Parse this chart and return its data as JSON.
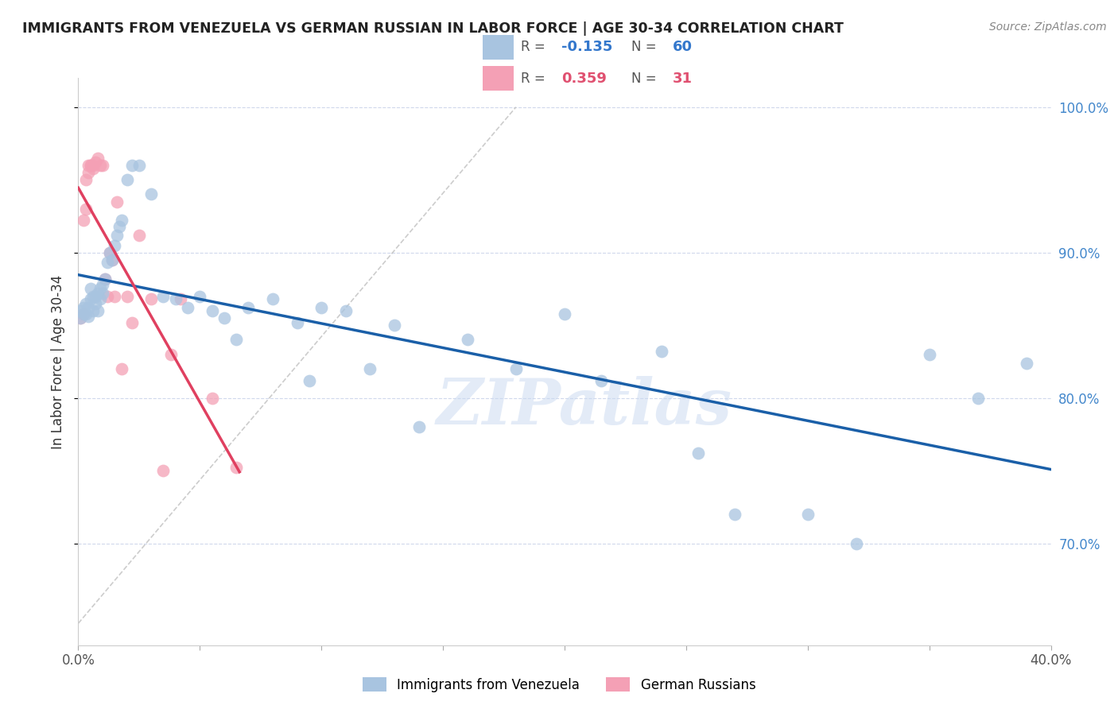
{
  "title": "IMMIGRANTS FROM VENEZUELA VS GERMAN RUSSIAN IN LABOR FORCE | AGE 30-34 CORRELATION CHART",
  "source": "Source: ZipAtlas.com",
  "ylabel": "In Labor Force | Age 30-34",
  "xlim": [
    0.0,
    0.4
  ],
  "ylim": [
    0.63,
    1.02
  ],
  "xticks": [
    0.0,
    0.05,
    0.1,
    0.15,
    0.2,
    0.25,
    0.3,
    0.35,
    0.4
  ],
  "xticklabels": [
    "0.0%",
    "",
    "",
    "",
    "",
    "",
    "",
    "",
    "40.0%"
  ],
  "yticks": [
    0.7,
    0.8,
    0.9,
    1.0
  ],
  "yticklabels": [
    "70.0%",
    "80.0%",
    "90.0%",
    "100.0%"
  ],
  "blue_color": "#a8c4e0",
  "pink_color": "#f4a0b5",
  "blue_line_color": "#1a5fa8",
  "pink_line_color": "#e04060",
  "legend_R_blue": "-0.135",
  "legend_N_blue": "60",
  "legend_R_pink": "0.359",
  "legend_N_pink": "31",
  "label_blue": "Immigrants from Venezuela",
  "label_pink": "German Russians",
  "watermark": "ZIPatlas",
  "blue_x": [
    0.001,
    0.001,
    0.002,
    0.002,
    0.003,
    0.003,
    0.004,
    0.004,
    0.005,
    0.005,
    0.006,
    0.006,
    0.007,
    0.007,
    0.008,
    0.008,
    0.009,
    0.009,
    0.01,
    0.01,
    0.011,
    0.012,
    0.013,
    0.014,
    0.015,
    0.016,
    0.017,
    0.018,
    0.02,
    0.022,
    0.025,
    0.03,
    0.035,
    0.04,
    0.045,
    0.05,
    0.055,
    0.06,
    0.065,
    0.07,
    0.08,
    0.09,
    0.095,
    0.1,
    0.11,
    0.12,
    0.13,
    0.14,
    0.16,
    0.18,
    0.2,
    0.215,
    0.24,
    0.255,
    0.27,
    0.3,
    0.32,
    0.35,
    0.37,
    0.39
  ],
  "blue_y": [
    0.86,
    0.855,
    0.862,
    0.858,
    0.865,
    0.858,
    0.862,
    0.856,
    0.875,
    0.868,
    0.87,
    0.86,
    0.87,
    0.865,
    0.872,
    0.86,
    0.875,
    0.868,
    0.878,
    0.872,
    0.882,
    0.893,
    0.9,
    0.895,
    0.905,
    0.912,
    0.918,
    0.922,
    0.95,
    0.96,
    0.96,
    0.94,
    0.87,
    0.868,
    0.862,
    0.87,
    0.86,
    0.855,
    0.84,
    0.862,
    0.868,
    0.852,
    0.812,
    0.862,
    0.86,
    0.82,
    0.85,
    0.78,
    0.84,
    0.82,
    0.858,
    0.812,
    0.832,
    0.762,
    0.72,
    0.72,
    0.7,
    0.83,
    0.8,
    0.824
  ],
  "pink_x": [
    0.001,
    0.002,
    0.002,
    0.003,
    0.003,
    0.004,
    0.004,
    0.005,
    0.005,
    0.006,
    0.006,
    0.007,
    0.008,
    0.009,
    0.01,
    0.011,
    0.012,
    0.013,
    0.014,
    0.015,
    0.016,
    0.018,
    0.02,
    0.022,
    0.025,
    0.03,
    0.035,
    0.038,
    0.042,
    0.055,
    0.065
  ],
  "pink_y": [
    0.855,
    0.858,
    0.922,
    0.93,
    0.95,
    0.955,
    0.96,
    0.96,
    0.96,
    0.96,
    0.958,
    0.962,
    0.965,
    0.96,
    0.96,
    0.882,
    0.87,
    0.9,
    0.895,
    0.87,
    0.935,
    0.82,
    0.87,
    0.852,
    0.912,
    0.868,
    0.75,
    0.83,
    0.868,
    0.8,
    0.752
  ],
  "diag_line": [
    [
      0.0,
      0.18
    ],
    [
      0.645,
      1.0
    ]
  ]
}
